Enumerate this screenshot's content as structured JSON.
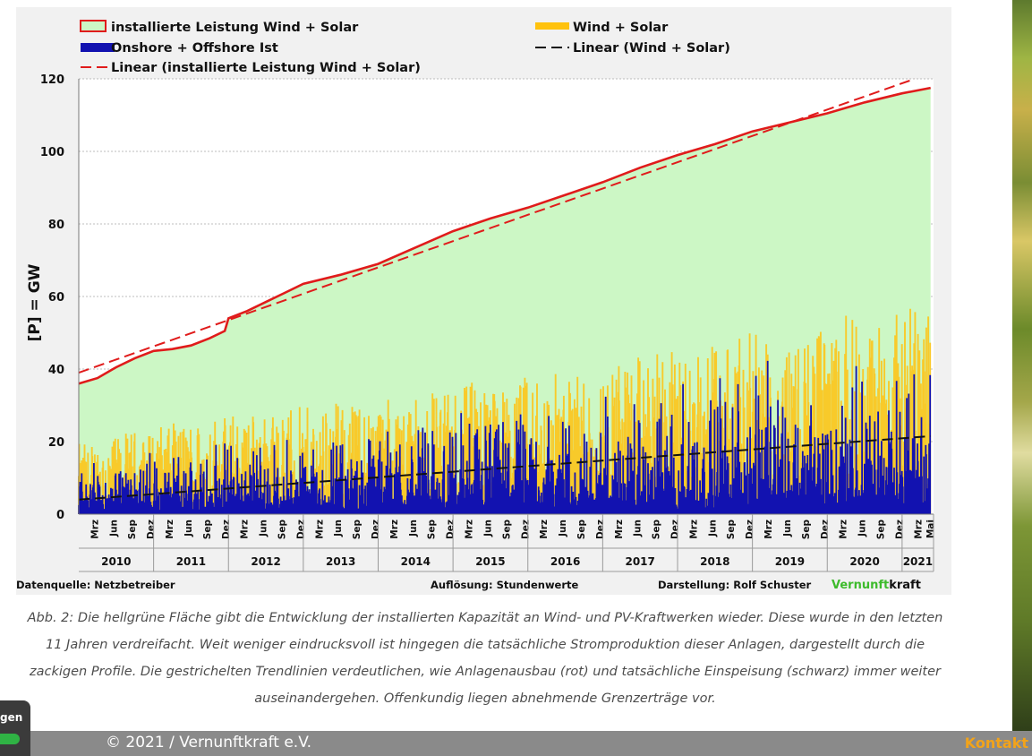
{
  "chart_data": {
    "type": "area",
    "ylabel": "[P]  =  GW",
    "ylim": [
      0,
      120
    ],
    "yticks": [
      0,
      20,
      40,
      60,
      80,
      100,
      120
    ],
    "x_range": [
      "2010-01",
      "2021-05"
    ],
    "legend": [
      {
        "label": "installierte Leistung Wind + Solar",
        "kind": "area",
        "fill": "#ccf7c5",
        "stroke": "#e01b1b"
      },
      {
        "label": "Wind + Solar",
        "kind": "area",
        "fill": "#ffc20e"
      },
      {
        "label": "Onshore + Offshore Ist",
        "kind": "area",
        "fill": "#1212b0"
      },
      {
        "label": "Linear (Wind + Solar)",
        "kind": "dashed-line",
        "stroke": "#111111"
      },
      {
        "label": "Linear (installierte Leistung Wind + Solar)",
        "kind": "dashed-line",
        "stroke": "#e01b1b"
      }
    ],
    "series": [
      {
        "name": "installierte Leistung Wind + Solar",
        "x": [
          2010.0,
          2010.25,
          2010.5,
          2010.75,
          2011.0,
          2011.25,
          2011.5,
          2011.75,
          2011.95,
          2012.0,
          2012.25,
          2012.5,
          2012.75,
          2013.0,
          2013.5,
          2014.0,
          2014.5,
          2015.0,
          2015.5,
          2016.0,
          2016.5,
          2017.0,
          2017.5,
          2018.0,
          2018.5,
          2019.0,
          2019.5,
          2020.0,
          2020.5,
          2021.0,
          2021.38
        ],
        "values": [
          36,
          37.5,
          40.5,
          43,
          45,
          45.5,
          46.5,
          48.5,
          50.5,
          54,
          56,
          58.5,
          61,
          63.5,
          66,
          69,
          73.5,
          78,
          81.5,
          84.5,
          88,
          91.5,
          95.5,
          99,
          102,
          105.5,
          108,
          110.5,
          113.5,
          116,
          117.5
        ]
      },
      {
        "name": "Linear (installierte Leistung Wind + Solar)",
        "x": [
          2010.0,
          2021.17
        ],
        "values": [
          39,
          120
        ]
      },
      {
        "name": "Linear (Wind + Solar)",
        "x": [
          2010.0,
          2021.38
        ],
        "values": [
          4,
          21.5
        ]
      },
      {
        "name": "Wind + Solar (approx. peak envelope)",
        "x": [
          2010,
          2011,
          2012,
          2013,
          2014,
          2015,
          2016,
          2017,
          2018,
          2019,
          2020,
          2021,
          2021.38
        ],
        "values": [
          18,
          22,
          26,
          27,
          30,
          33,
          35,
          38,
          42,
          45,
          48,
          52,
          55
        ]
      },
      {
        "name": "Onshore + Offshore Ist (approx. peak envelope)",
        "x": [
          2010,
          2011,
          2012,
          2013,
          2014,
          2015,
          2016,
          2017,
          2018,
          2019,
          2020,
          2021,
          2021.38
        ],
        "values": [
          14,
          17,
          20,
          20,
          22,
          28,
          30,
          34,
          38,
          42,
          43,
          44,
          42
        ]
      }
    ],
    "x_month_labels": [
      "Mrz",
      "Jun",
      "Sep",
      "Dez",
      "Mrz",
      "Jun",
      "Sep",
      "Dez",
      "Mrz",
      "Jun",
      "Sep",
      "Dez",
      "Mrz",
      "Jun",
      "Sep",
      "Dez",
      "Mrz",
      "Jun",
      "Sep",
      "Dez",
      "Mrz",
      "Jun",
      "Sep",
      "Dez",
      "Mrz",
      "Jun",
      "Sep",
      "Dez",
      "Mrz",
      "Jun",
      "Sep",
      "Dez",
      "Mrz",
      "Jun",
      "Sep",
      "Dez",
      "Mrz",
      "Jun",
      "Sep",
      "Dez",
      "Mrz",
      "Jun",
      "Sep",
      "Dez",
      "Mrz",
      "Mai"
    ],
    "x_year_labels": [
      "2010",
      "2011",
      "2012",
      "2013",
      "2014",
      "2015",
      "2016",
      "2017",
      "2018",
      "2019",
      "2020",
      "2021"
    ],
    "footer": {
      "source": "Datenquelle: Netzbetreiber",
      "resolution": "Auflösung: Stundenwerte",
      "author": "Darstellung:  Rolf Schuster",
      "brand_part1": "Vernunft",
      "brand_part2": "kraft"
    },
    "colors": {
      "installed_fill": "#ccf7c5",
      "installed_line": "#e01b1b",
      "wind_solar": "#ffc20e",
      "onshore": "#1212b0",
      "trend_black": "#111111",
      "brand_green": "#3dbb2c"
    }
  },
  "caption": "Abb. 2: Die hellgrüne Fläche gibt die Entwicklung der installierten Kapazität an Wind- und PV-Kraftwerken wieder. Diese wurde in den letzten 11 Jahren verdreifacht. Weit weniger eindrucksvoll ist hingegen die tatsächliche Stromproduktion dieser Anlagen, dargestellt durch die zackigen Profile. Die gestrichelten Trendlinien verdeutlichen, wie Anlagenausbau (rot) und tatsächliche Einspeisung (schwarz) immer weiter auseinandergehen. Offenkundig liegen abnehmende Grenzerträge vor.",
  "footer": {
    "copyright": "© 2021 / Vernunftkraft e.V.",
    "contact": "Kontakt"
  },
  "cookie_widget": {
    "label": "gen"
  }
}
